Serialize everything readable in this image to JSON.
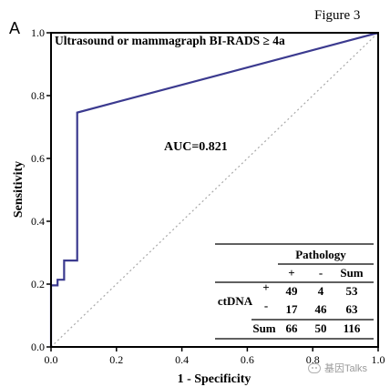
{
  "figure_label": "Figure 3",
  "panel_label": "A",
  "watermark": "基因Talks",
  "colors": {
    "roc_line": "#3b3a8f",
    "diagonal": "#a8a8a8",
    "axis": "#000000"
  },
  "chart_data": {
    "type": "line",
    "title": "Ultrasound or mammagraph BI-RADS ≥ 4a",
    "xlabel": "1 - Specificity",
    "ylabel": "Sensitivity",
    "xlim": [
      0.0,
      1.0
    ],
    "ylim": [
      0.0,
      1.0
    ],
    "xticks": [
      "0.0",
      "0.2",
      "0.4",
      "0.6",
      "0.8",
      "1.0"
    ],
    "yticks": [
      "0.0",
      "0.2",
      "0.4",
      "0.6",
      "0.8",
      "1.0"
    ],
    "grid": false,
    "annotation": "AUC=0.821",
    "roc_curve": {
      "x": [
        0.0,
        0.0,
        0.02,
        0.02,
        0.04,
        0.04,
        0.08,
        0.08,
        1.0
      ],
      "y": [
        0.0,
        0.196,
        0.196,
        0.214,
        0.214,
        0.275,
        0.275,
        0.746,
        1.0
      ]
    },
    "reference_line": {
      "x": [
        0.0,
        1.0
      ],
      "y": [
        0.0,
        1.0
      ],
      "style": "dotted"
    },
    "table": {
      "header": "Pathology",
      "columns": [
        "+",
        "-",
        "Sum"
      ],
      "row_group_label": "ctDNA",
      "rows": [
        {
          "label": "+",
          "values": [
            "49",
            "4",
            "53"
          ]
        },
        {
          "label": "-",
          "values": [
            "17",
            "46",
            "63"
          ]
        },
        {
          "label": "Sum",
          "values": [
            "66",
            "50",
            "116"
          ]
        }
      ]
    }
  }
}
